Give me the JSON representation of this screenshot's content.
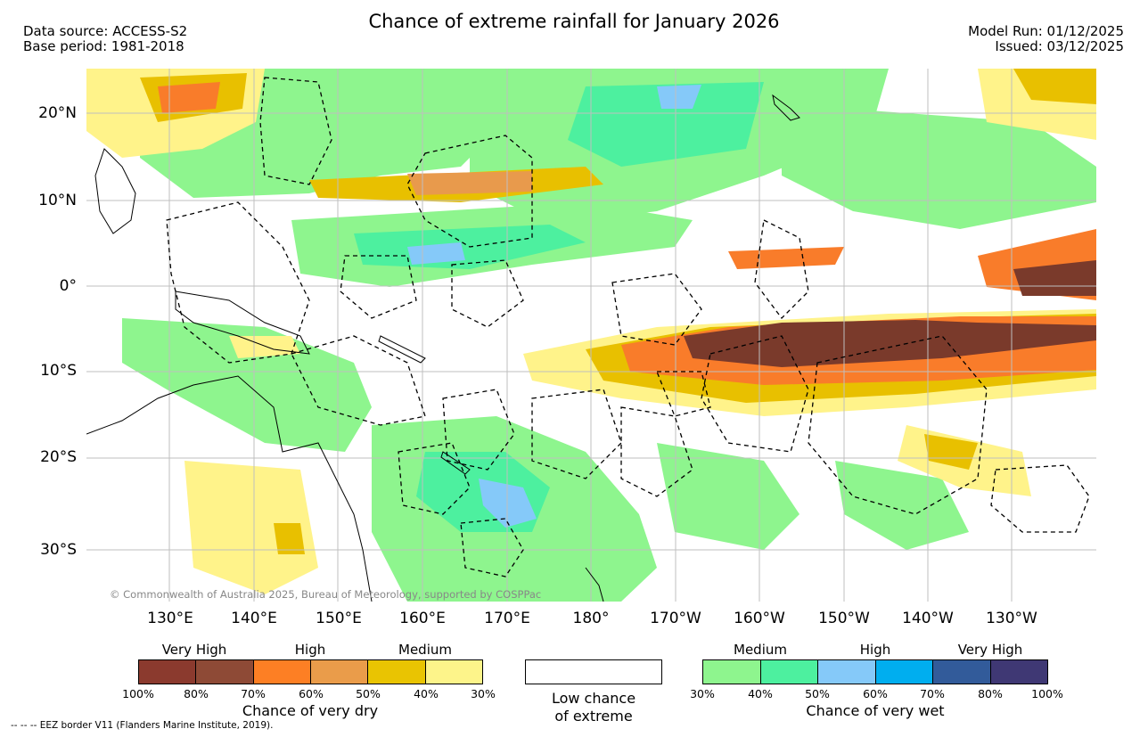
{
  "header": {
    "title": "Chance of extreme rainfall for January 2026",
    "data_source": "Data source: ACCESS-S2",
    "base_period": "Base period: 1981-2018",
    "model_run": "Model Run: 01/12/2025",
    "issued": "Issued: 03/12/2025"
  },
  "map": {
    "lat_labels": [
      "20°N",
      "10°N",
      "0°",
      "10°S",
      "20°S",
      "30°S"
    ],
    "lon_labels": [
      "130°E",
      "140°E",
      "150°E",
      "160°E",
      "170°E",
      "180°",
      "170°W",
      "160°W",
      "150°W",
      "140°W",
      "130°W"
    ],
    "copyright": "© Commonwealth of Australia 2025, Bureau of Meteorology, supported by COSPPac",
    "colors": {
      "land_outline": "#000000",
      "grid": "#bfbfbf",
      "very_dry_dark": "#7a3a2b",
      "dry_orange": "#f97c2a",
      "dry_light": "#e89a4c",
      "dry_medium": "#e8c000",
      "dry_low": "#fff38a",
      "wet_low": "#8ef58e",
      "wet_medium": "#4df0a0",
      "wet_high": "#85c8f8"
    }
  },
  "legend": {
    "dry": {
      "categories": [
        "Very High",
        "High",
        "Medium"
      ],
      "colors": [
        "#8b3a2e",
        "#8e4a36",
        "#fd7f24",
        "#ea9c4a",
        "#e9c402",
        "#fdf48a"
      ],
      "ticks": [
        "100%",
        "80%",
        "70%",
        "60%",
        "50%",
        "40%",
        "30%"
      ],
      "title": "Chance of very dry"
    },
    "low": {
      "line1": "Low chance",
      "line2": "of extreme",
      "color": "#ffffff"
    },
    "wet": {
      "categories": [
        "Medium",
        "High",
        "Very High"
      ],
      "colors": [
        "#8ef58e",
        "#4df09f",
        "#85c9f9",
        "#00aeef",
        "#325b9a",
        "#3f3874"
      ],
      "ticks": [
        "30%",
        "40%",
        "50%",
        "60%",
        "70%",
        "80%",
        "100%"
      ],
      "title": "Chance of very wet"
    }
  },
  "footer": {
    "eez_note": "--  --  -- EEZ border V11 (Flanders Marine Institute, 2019)."
  }
}
